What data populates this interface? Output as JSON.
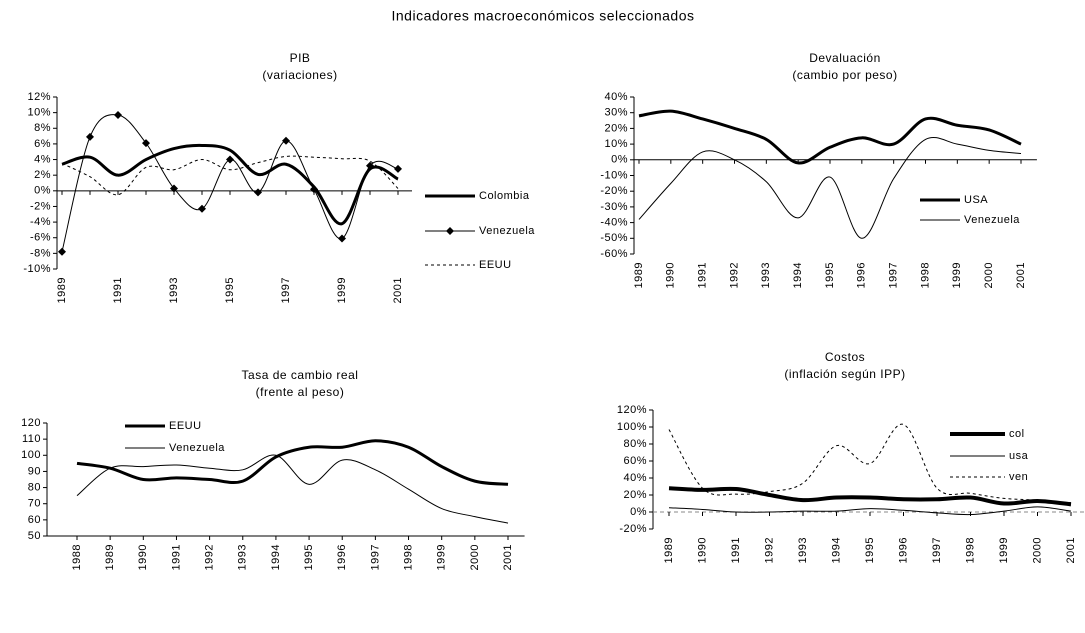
{
  "title": "Indicadores macroeconómicos seleccionados",
  "chart_data": [
    {
      "type": "line",
      "title": "PIB",
      "subtitle": "(variaciones)",
      "categories": [
        "1989",
        null,
        "1991",
        null,
        "1993",
        null,
        "1995",
        null,
        "1997",
        null,
        "1999",
        null,
        "2001"
      ],
      "ylim": [
        -10,
        12
      ],
      "yticks": [
        {
          "value": 12,
          "label": "12%"
        },
        {
          "value": 10,
          "label": "10%"
        },
        {
          "value": 8,
          "label": "8%"
        },
        {
          "value": 6,
          "label": "6%"
        },
        {
          "value": 4,
          "label": "4%"
        },
        {
          "value": 2,
          "label": "2%"
        },
        {
          "value": 0,
          "label": "0%"
        },
        {
          "value": -2,
          "label": "-2%"
        },
        {
          "value": -4,
          "label": "-4%"
        },
        {
          "value": -6,
          "label": "-6%"
        },
        {
          "value": -8,
          "label": "-8%"
        },
        {
          "value": -10,
          "label": "-10%"
        }
      ],
      "series": [
        {
          "name": "Colombia",
          "color": "#000000",
          "width": 3,
          "dash": "none",
          "marker": "none",
          "values": [
            3.4,
            4.3,
            2.0,
            4.0,
            5.4,
            5.8,
            5.2,
            2.1,
            3.4,
            0.5,
            -4.2,
            2.8,
            1.5
          ]
        },
        {
          "name": "Venezuela",
          "color": "#000000",
          "width": 1,
          "dash": "none",
          "marker": "diamond",
          "values": [
            -7.8,
            6.9,
            9.7,
            6.1,
            0.3,
            -2.3,
            4.0,
            -0.2,
            6.4,
            0.2,
            -6.1,
            3.2,
            2.8
          ]
        },
        {
          "name": "EEUU",
          "color": "#000000",
          "width": 1,
          "dash": "3,3",
          "marker": "none",
          "values": [
            3.5,
            1.8,
            -0.5,
            3.0,
            2.7,
            4.0,
            2.7,
            3.6,
            4.4,
            4.3,
            4.1,
            3.8,
            0.3
          ]
        }
      ]
    },
    {
      "type": "line",
      "title": "Devaluación",
      "subtitle": "(cambio por peso)",
      "categories": [
        "1989",
        "1990",
        "1991",
        "1992",
        "1993",
        "1994",
        "1995",
        "1996",
        "1997",
        "1998",
        "1999",
        "2000",
        "2001"
      ],
      "ylim": [
        -60,
        40
      ],
      "yticks": [
        {
          "value": 40,
          "label": "40%"
        },
        {
          "value": 30,
          "label": "30%"
        },
        {
          "value": 20,
          "label": "20%"
        },
        {
          "value": 10,
          "label": "10%"
        },
        {
          "value": 0,
          "label": "0%"
        },
        {
          "value": -10,
          "label": "-10%"
        },
        {
          "value": -20,
          "label": "-20%"
        },
        {
          "value": -30,
          "label": "-30%"
        },
        {
          "value": -40,
          "label": "-40%"
        },
        {
          "value": -50,
          "label": "-50%"
        },
        {
          "value": -60,
          "label": "-60%"
        }
      ],
      "series": [
        {
          "name": "USA",
          "color": "#000000",
          "width": 3,
          "dash": "none",
          "marker": "none",
          "values": [
            28,
            31,
            26,
            20,
            13,
            -2,
            8,
            14,
            10,
            26,
            22,
            19,
            10
          ]
        },
        {
          "name": "Venezuela",
          "color": "#000000",
          "width": 1,
          "dash": "none",
          "marker": "none",
          "values": [
            -38,
            -15,
            5,
            0,
            -14,
            -37,
            -11,
            -50,
            -12,
            13,
            10,
            6,
            4
          ]
        }
      ]
    },
    {
      "type": "line",
      "title": "Tasa de cambio real",
      "subtitle": "(frente al peso)",
      "categories": [
        "1988",
        "1989",
        "1990",
        "1991",
        "1992",
        "1993",
        "1994",
        "1995",
        "1996",
        "1997",
        "1998",
        "1999",
        "2000",
        "2001"
      ],
      "ylim": [
        50,
        120
      ],
      "yticks": [
        120,
        110,
        100,
        90,
        80,
        70,
        60,
        50
      ],
      "series": [
        {
          "name": "EEUU",
          "color": "#000000",
          "width": 3,
          "dash": "none",
          "marker": "none",
          "values": [
            95,
            92,
            85,
            86,
            85,
            84,
            99,
            105,
            105,
            109,
            105,
            93,
            84,
            82
          ]
        },
        {
          "name": "Venezuela",
          "color": "#000000",
          "width": 1,
          "dash": "none",
          "marker": "none",
          "values": [
            75,
            92,
            93,
            94,
            92,
            91,
            100,
            82,
            97,
            91,
            79,
            67,
            62,
            58
          ]
        }
      ]
    },
    {
      "type": "line",
      "title": "Costos",
      "subtitle": "(inflación según IPP)",
      "categories": [
        "1989",
        "1990",
        "1991",
        "1992",
        "1993",
        "1994",
        "1995",
        "1996",
        "1997",
        "1998",
        "1999",
        "2000",
        "2001"
      ],
      "ylim": [
        -20,
        120
      ],
      "zero_line": "dashed",
      "yticks": [
        {
          "value": 120,
          "label": "120%"
        },
        {
          "value": 100,
          "label": "100%"
        },
        {
          "value": 80,
          "label": "80%"
        },
        {
          "value": 60,
          "label": "60%"
        },
        {
          "value": 40,
          "label": "40%"
        },
        {
          "value": 20,
          "label": "20%"
        },
        {
          "value": 0,
          "label": "0%"
        },
        {
          "value": -20,
          "label": "-20%"
        }
      ],
      "series": [
        {
          "name": "col",
          "color": "#000000",
          "width": 4,
          "dash": "none",
          "marker": "none",
          "values": [
            28,
            26,
            27,
            20,
            14,
            17,
            17,
            15,
            15,
            17,
            10,
            13,
            9
          ]
        },
        {
          "name": "usa",
          "color": "#000000",
          "width": 1,
          "dash": "none",
          "marker": "none",
          "values": [
            5,
            3,
            0,
            0,
            1,
            1,
            4,
            2,
            -1,
            -3,
            1,
            6,
            1
          ]
        },
        {
          "name": "ven",
          "color": "#000000",
          "width": 1,
          "dash": "3,3",
          "marker": "none",
          "values": [
            97,
            28,
            21,
            24,
            34,
            78,
            57,
            103,
            28,
            22,
            16,
            14,
            11
          ]
        }
      ]
    }
  ]
}
